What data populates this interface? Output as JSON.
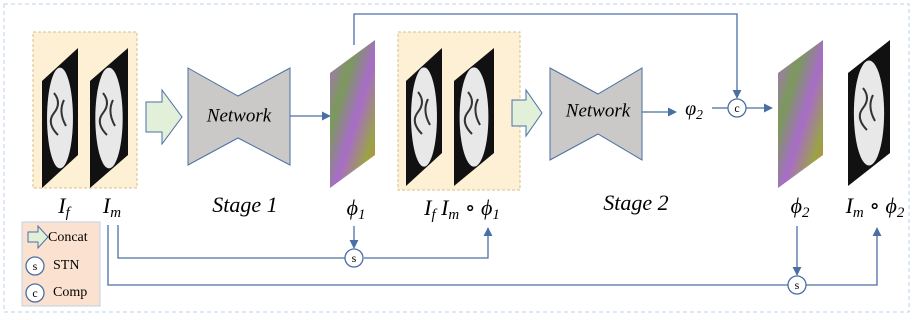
{
  "operators": {
    "stn": "s",
    "comp": "c"
  },
  "stage1": {
    "network": "Network",
    "title": "Stage 1"
  },
  "stage2": {
    "network": "Network",
    "title": "Stage 2",
    "field": [
      {
        "text": "φ",
        "sub": "2"
      }
    ]
  },
  "labels": {
    "fixed": [
      {
        "text": "I",
        "sub": "f"
      }
    ],
    "moving": [
      {
        "text": "I",
        "sub": "m"
      }
    ],
    "phi1": [
      {
        "text": "ϕ",
        "sub": "1"
      }
    ],
    "warped1": [
      {
        "text": "I",
        "sub": "f"
      },
      {
        "text": " I",
        "sub": "m"
      },
      {
        "text": " ∘ ϕ",
        "sub": "1"
      }
    ],
    "phi2": [
      {
        "text": "ϕ",
        "sub": "2"
      }
    ],
    "warped2": [
      {
        "text": "I",
        "sub": "m"
      },
      {
        "text": " ∘ ϕ",
        "sub": "2"
      }
    ]
  },
  "legend": {
    "concat": "Concat",
    "stn": "STN",
    "comp": "Comp"
  }
}
